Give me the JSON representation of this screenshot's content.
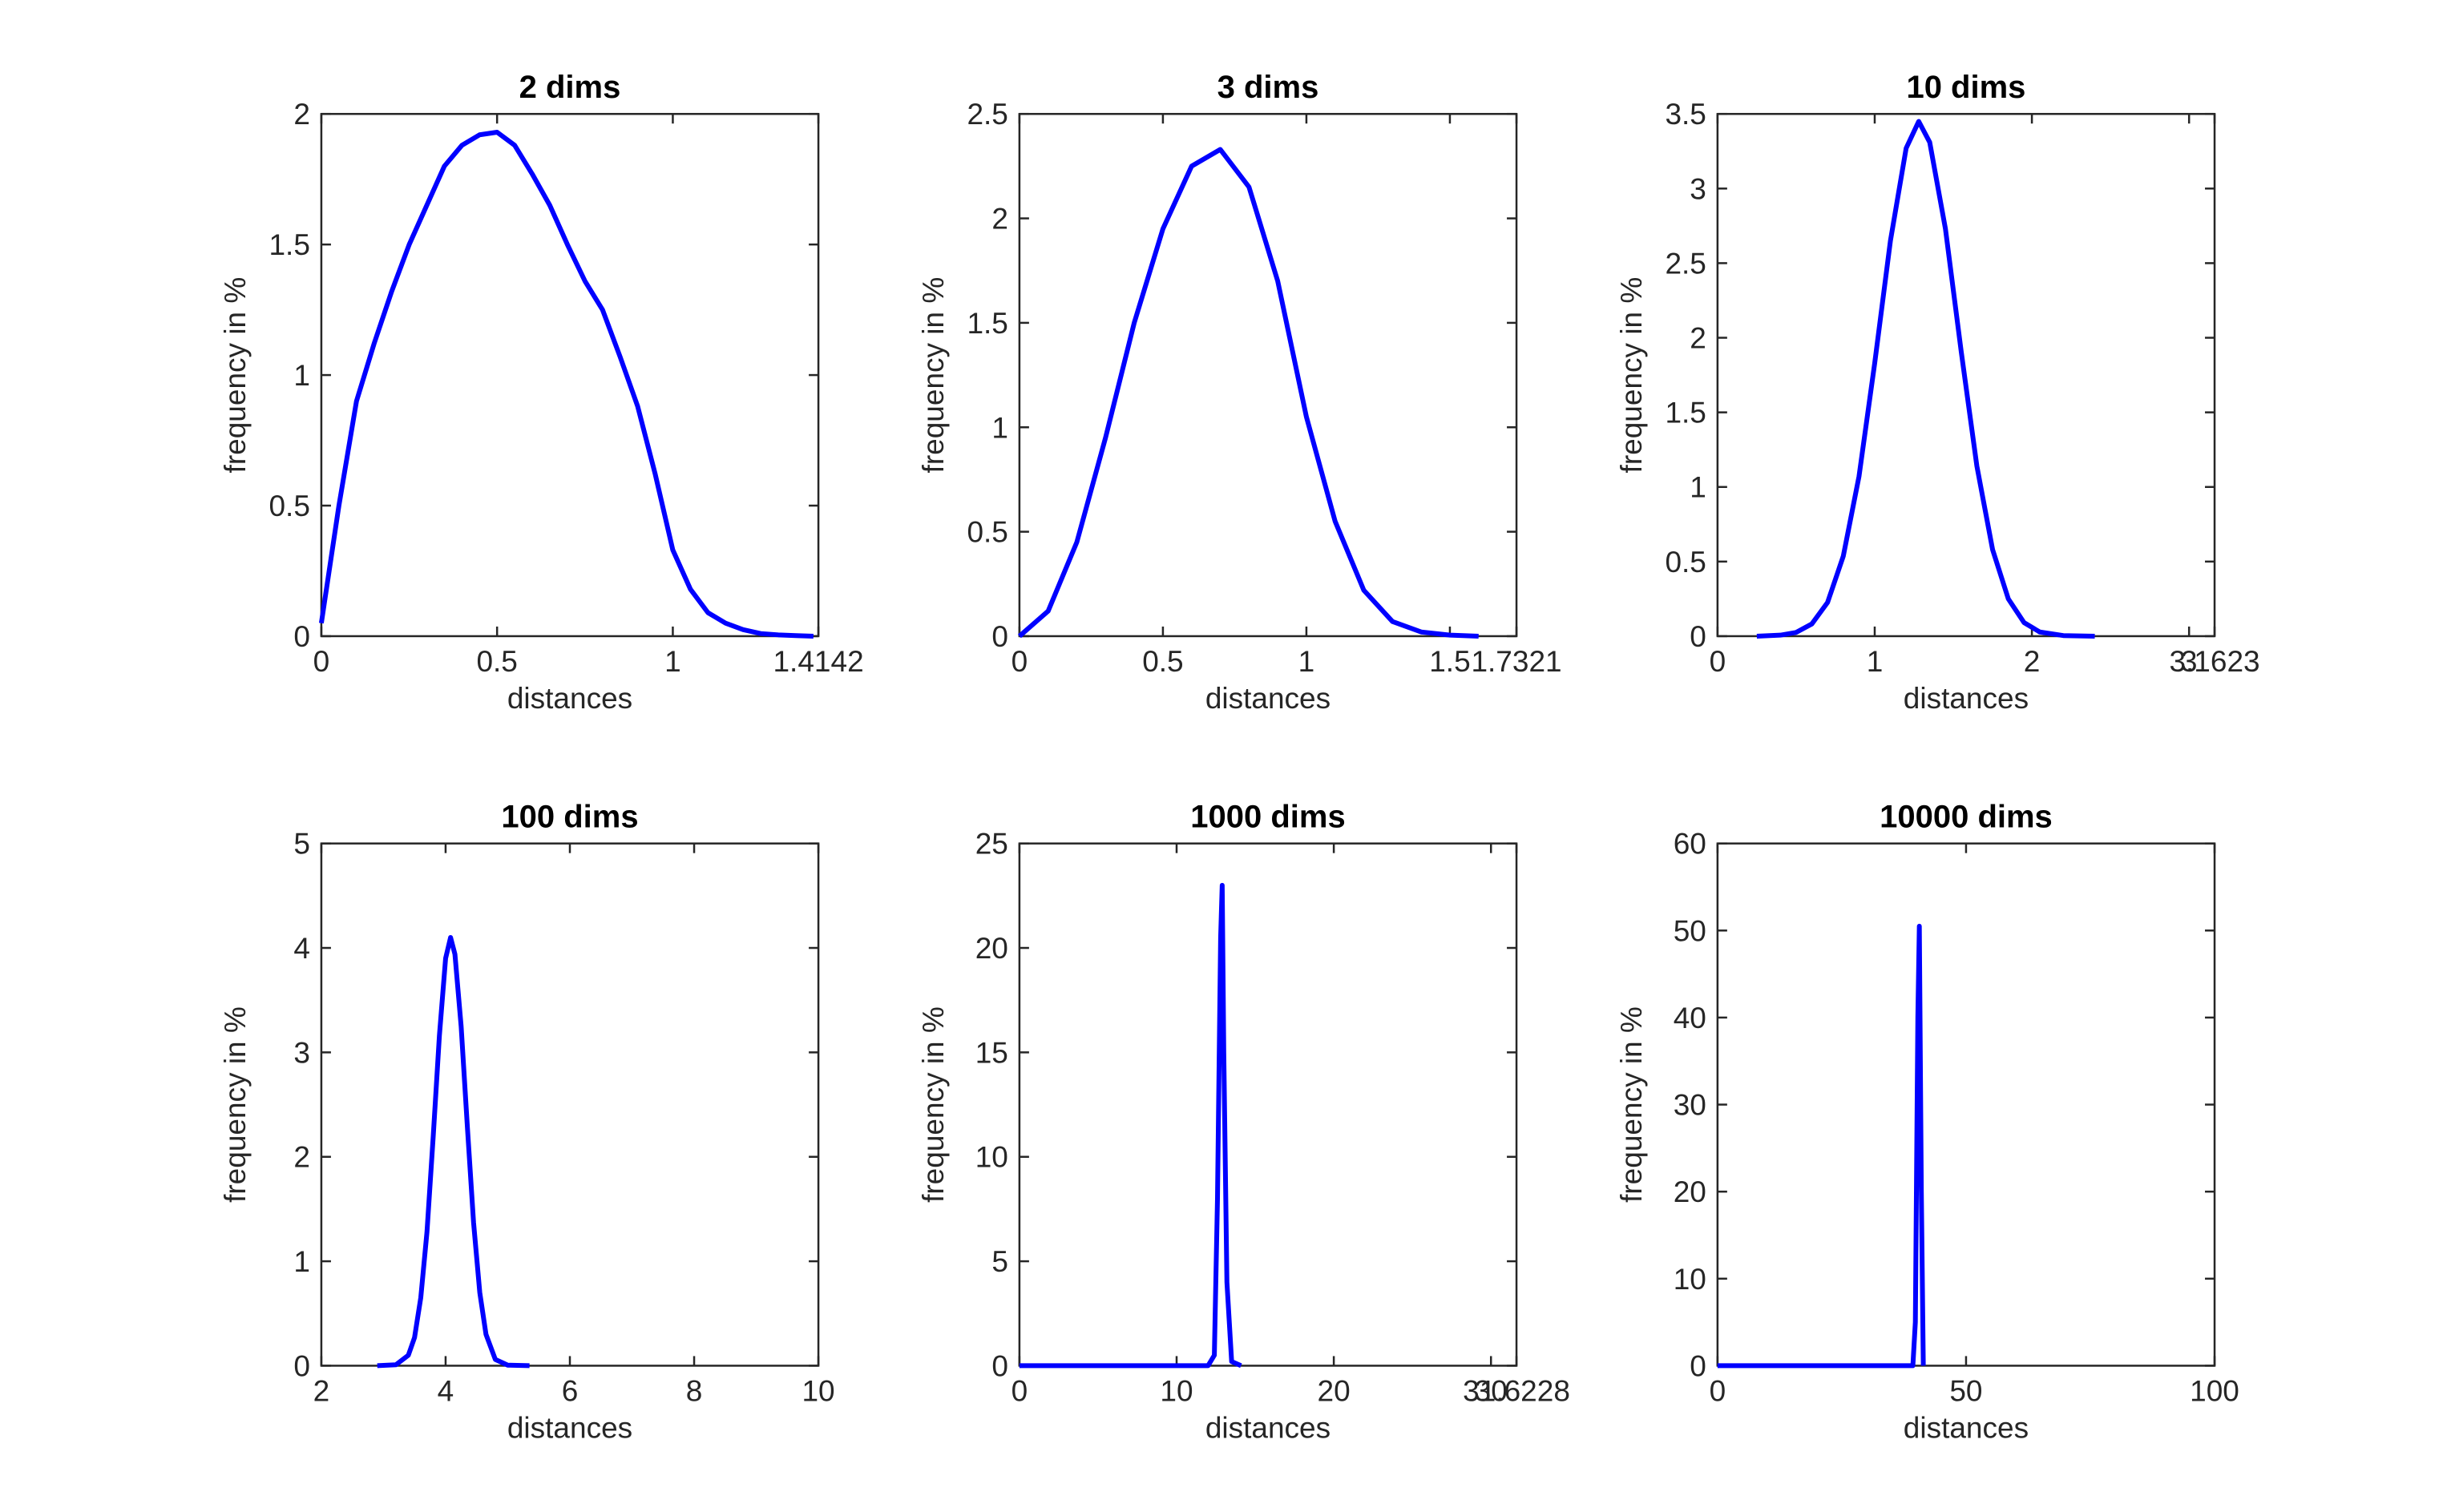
{
  "chart_data": [
    {
      "type": "line",
      "title": "2 dims",
      "xlabel": "distances",
      "ylabel": "frequency in %",
      "color": "#0000ff",
      "x": [
        0,
        0.05,
        0.1,
        0.15,
        0.2,
        0.25,
        0.3,
        0.35,
        0.4,
        0.45,
        0.5,
        0.55,
        0.6,
        0.65,
        0.7,
        0.75,
        0.8,
        0.85,
        0.9,
        0.95,
        1.0,
        1.05,
        1.1,
        1.15,
        1.2,
        1.25,
        1.3,
        1.35,
        1.4
      ],
      "values": [
        0.05,
        0.5,
        0.9,
        1.12,
        1.32,
        1.5,
        1.65,
        1.8,
        1.88,
        1.92,
        1.93,
        1.88,
        1.77,
        1.65,
        1.5,
        1.36,
        1.25,
        1.07,
        0.88,
        0.62,
        0.33,
        0.18,
        0.09,
        0.05,
        0.025,
        0.01,
        0.005,
        0.002,
        0
      ],
      "xlim": [
        0,
        1.4142
      ],
      "xticks": [
        0,
        0.5,
        1,
        1.4142
      ],
      "ylim": [
        0,
        2
      ],
      "yticks": [
        0,
        0.5,
        1,
        1.5,
        2
      ]
    },
    {
      "type": "line",
      "title": "3 dims",
      "xlabel": "distances",
      "ylabel": "frequency in %",
      "color": "#0000ff",
      "x": [
        0,
        0.1,
        0.2,
        0.3,
        0.4,
        0.5,
        0.6,
        0.7,
        0.8,
        0.9,
        1.0,
        1.1,
        1.2,
        1.3,
        1.4,
        1.5,
        1.6
      ],
      "values": [
        0,
        0.12,
        0.45,
        0.95,
        1.5,
        1.95,
        2.25,
        2.33,
        2.15,
        1.7,
        1.05,
        0.55,
        0.22,
        0.07,
        0.02,
        0.005,
        0
      ],
      "xlim": [
        0,
        1.7321
      ],
      "xticks": [
        0,
        0.5,
        1,
        1.5,
        1.7321
      ],
      "ylim": [
        0,
        2.5
      ],
      "yticks": [
        0,
        0.5,
        1,
        1.5,
        2,
        2.5
      ]
    },
    {
      "type": "line",
      "title": "10 dims",
      "xlabel": "distances",
      "ylabel": "frequency in %",
      "color": "#0000ff",
      "x": [
        0.25,
        0.4,
        0.5,
        0.6,
        0.7,
        0.8,
        0.9,
        1.0,
        1.1,
        1.2,
        1.28,
        1.35,
        1.45,
        1.55,
        1.65,
        1.75,
        1.85,
        1.95,
        2.05,
        2.2,
        2.4
      ],
      "values": [
        0,
        0.007,
        0.025,
        0.082,
        0.226,
        0.536,
        1.07,
        1.83,
        2.65,
        3.27,
        3.45,
        3.31,
        2.73,
        1.91,
        1.14,
        0.58,
        0.25,
        0.091,
        0.028,
        0.004,
        0
      ],
      "xlim": [
        0,
        3.1623
      ],
      "xticks": [
        0,
        1,
        2,
        3,
        3.1623
      ],
      "ylim": [
        0,
        3.5
      ],
      "yticks": [
        0,
        0.5,
        1,
        1.5,
        2,
        2.5,
        3,
        3.5
      ]
    },
    {
      "type": "line",
      "title": "100 dims",
      "xlabel": "distances",
      "ylabel": "frequency in %",
      "color": "#0000ff",
      "x": [
        2.9,
        3.2,
        3.4,
        3.5,
        3.6,
        3.7,
        3.8,
        3.9,
        4.0,
        4.08,
        4.15,
        4.25,
        4.35,
        4.45,
        4.55,
        4.65,
        4.8,
        5.0,
        5.35
      ],
      "values": [
        0,
        0.009,
        0.1,
        0.27,
        0.65,
        1.28,
        2.19,
        3.16,
        3.9,
        4.1,
        3.94,
        3.25,
        2.29,
        1.37,
        0.7,
        0.3,
        0.06,
        0.005,
        0
      ],
      "xlim": [
        2,
        10
      ],
      "xticks": [
        2,
        4,
        6,
        8,
        10
      ],
      "ylim": [
        0,
        5
      ],
      "yticks": [
        0,
        1,
        2,
        3,
        4,
        5
      ]
    },
    {
      "type": "line",
      "title": "1000 dims",
      "xlabel": "distances",
      "ylabel": "frequency in %",
      "color": "#0000ff",
      "x": [
        0,
        12,
        12.4,
        12.6,
        12.8,
        12.9,
        13.0,
        13.2,
        13.5,
        14.1
      ],
      "values": [
        0,
        0,
        0.5,
        8,
        20.5,
        23,
        15,
        4,
        0.2,
        0
      ],
      "xlim": [
        0,
        31.6228
      ],
      "xticks": [
        0,
        10,
        20,
        30,
        31.6228
      ],
      "ylim": [
        0,
        25
      ],
      "yticks": [
        0,
        5,
        10,
        15,
        20,
        25
      ]
    },
    {
      "type": "line",
      "title": "10000 dims",
      "xlabel": "distances",
      "ylabel": "frequency in %",
      "color": "#0000ff",
      "x": [
        0,
        39.3,
        39.8,
        40.3,
        40.6,
        41.0,
        41.4
      ],
      "values": [
        0,
        0,
        5,
        40,
        50.5,
        20,
        0
      ],
      "xlim": [
        0,
        100
      ],
      "xticks": [
        0,
        50,
        100
      ],
      "ylim": [
        0,
        60
      ],
      "yticks": [
        0,
        10,
        20,
        30,
        40,
        50,
        60
      ]
    }
  ]
}
